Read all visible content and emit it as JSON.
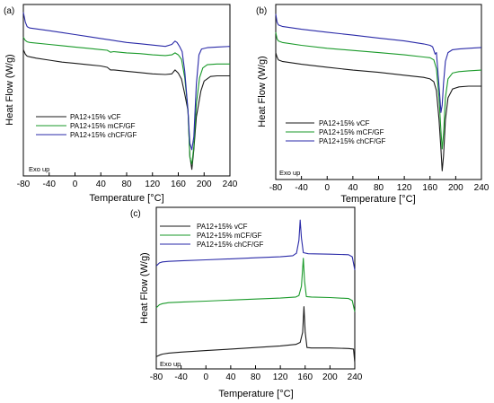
{
  "figure_labels": [
    "(a)",
    "(b)",
    "(c)"
  ],
  "colors": {
    "vCF": "#1a1a1a",
    "mCF_GF": "#1a9a2a",
    "chCF_GF": "#2a2aa8",
    "axis": "#000000"
  },
  "chart_data": [
    {
      "type": "line",
      "panel_label": "(a)",
      "xlabel": "Temperature [°C]",
      "ylabel": "Heat Flow (W/g)",
      "xlim": [
        -80,
        240
      ],
      "xticks": [
        "-80",
        "-40",
        "0",
        "40",
        "80",
        "120",
        "160",
        "200",
        "240"
      ],
      "yticks": false,
      "annotation": "Exo up",
      "legend_position": "left-middle",
      "series": [
        {
          "name": "PA12+15% vCF",
          "color": "#1a1a1a",
          "points": [
            [
              -80,
              0.93
            ],
            [
              -77,
              0.86
            ],
            [
              -74,
              0.83
            ],
            [
              -70,
              0.82
            ],
            [
              -60,
              0.8
            ],
            [
              -40,
              0.77
            ],
            [
              -20,
              0.74
            ],
            [
              0,
              0.72
            ],
            [
              20,
              0.7
            ],
            [
              40,
              0.68
            ],
            [
              50,
              0.66
            ],
            [
              55,
              0.62
            ],
            [
              60,
              0.62
            ],
            [
              80,
              0.6
            ],
            [
              100,
              0.58
            ],
            [
              120,
              0.56
            ],
            [
              140,
              0.55
            ],
            [
              150,
              0.56
            ],
            [
              155,
              0.62
            ],
            [
              160,
              0.57
            ],
            [
              165,
              0.48
            ],
            [
              170,
              0.25
            ],
            [
              175,
              0.0
            ],
            [
              178,
              -0.7
            ],
            [
              181,
              -0.9
            ],
            [
              184,
              -0.6
            ],
            [
              188,
              -0.1
            ],
            [
              195,
              0.3
            ],
            [
              200,
              0.45
            ],
            [
              210,
              0.52
            ],
            [
              220,
              0.53
            ],
            [
              240,
              0.53
            ]
          ]
        },
        {
          "name": "PA12+15% mCF/GF",
          "color": "#1a9a2a",
          "points": [
            [
              -80,
              1.12
            ],
            [
              -77,
              1.07
            ],
            [
              -74,
              1.05
            ],
            [
              -70,
              1.04
            ],
            [
              -40,
              1.01
            ],
            [
              -20,
              0.99
            ],
            [
              0,
              0.97
            ],
            [
              20,
              0.95
            ],
            [
              40,
              0.93
            ],
            [
              50,
              0.92
            ],
            [
              55,
              0.89
            ],
            [
              60,
              0.9
            ],
            [
              80,
              0.88
            ],
            [
              100,
              0.87
            ],
            [
              120,
              0.85
            ],
            [
              140,
              0.84
            ],
            [
              150,
              0.85
            ],
            [
              155,
              0.88
            ],
            [
              160,
              0.85
            ],
            [
              165,
              0.78
            ],
            [
              170,
              0.5
            ],
            [
              175,
              0.0
            ],
            [
              178,
              -0.72
            ],
            [
              181,
              -0.82
            ],
            [
              184,
              -0.55
            ],
            [
              188,
              0.1
            ],
            [
              193,
              0.5
            ],
            [
              198,
              0.65
            ],
            [
              205,
              0.7
            ],
            [
              220,
              0.71
            ],
            [
              240,
              0.71
            ]
          ]
        },
        {
          "name": "PA12+15% chCF/GF",
          "color": "#2a2aa8",
          "points": [
            [
              -80,
              1.5
            ],
            [
              -77,
              1.35
            ],
            [
              -74,
              1.28
            ],
            [
              -70,
              1.26
            ],
            [
              -40,
              1.22
            ],
            [
              -20,
              1.19
            ],
            [
              0,
              1.16
            ],
            [
              20,
              1.13
            ],
            [
              40,
              1.1
            ],
            [
              60,
              1.07
            ],
            [
              80,
              1.04
            ],
            [
              100,
              1.02
            ],
            [
              120,
              1.0
            ],
            [
              140,
              0.98
            ],
            [
              150,
              1.01
            ],
            [
              155,
              1.06
            ],
            [
              158,
              1.04
            ],
            [
              162,
              0.98
            ],
            [
              166,
              0.9
            ],
            [
              170,
              0.6
            ],
            [
              175,
              0.0
            ],
            [
              178,
              -0.5
            ],
            [
              181,
              -0.6
            ],
            [
              184,
              -0.4
            ],
            [
              188,
              0.4
            ],
            [
              192,
              0.85
            ],
            [
              196,
              0.94
            ],
            [
              205,
              0.96
            ],
            [
              220,
              0.97
            ],
            [
              240,
              0.98
            ]
          ]
        }
      ]
    },
    {
      "type": "line",
      "panel_label": "(b)",
      "xlabel": "Temperature [°C]",
      "ylabel": "Heat Flow (W/g)",
      "xlim": [
        -80,
        240
      ],
      "xticks": [
        "-80",
        "-40",
        "0",
        "40",
        "80",
        "120",
        "160",
        "200",
        "240"
      ],
      "yticks": false,
      "annotation": "Exo up",
      "legend_position": "left-lower",
      "series": [
        {
          "name": "PA12+15% vCF",
          "color": "#1a1a1a",
          "points": [
            [
              -80,
              1.02
            ],
            [
              -78,
              0.96
            ],
            [
              -76,
              0.92
            ],
            [
              -70,
              0.9
            ],
            [
              -40,
              0.86
            ],
            [
              0,
              0.82
            ],
            [
              40,
              0.78
            ],
            [
              80,
              0.75
            ],
            [
              120,
              0.71
            ],
            [
              150,
              0.68
            ],
            [
              160,
              0.66
            ],
            [
              166,
              0.62
            ],
            [
              170,
              0.5
            ],
            [
              174,
              0.1
            ],
            [
              177,
              -0.3
            ],
            [
              179,
              -0.6
            ],
            [
              181,
              -0.4
            ],
            [
              184,
              0.1
            ],
            [
              188,
              0.4
            ],
            [
              195,
              0.52
            ],
            [
              205,
              0.55
            ],
            [
              220,
              0.56
            ],
            [
              240,
              0.56
            ]
          ]
        },
        {
          "name": "PA12+15% mCF/GF",
          "color": "#1a9a2a",
          "points": [
            [
              -80,
              1.3
            ],
            [
              -78,
              1.21
            ],
            [
              -76,
              1.18
            ],
            [
              -70,
              1.16
            ],
            [
              -40,
              1.12
            ],
            [
              0,
              1.08
            ],
            [
              40,
              1.05
            ],
            [
              80,
              1.02
            ],
            [
              120,
              0.99
            ],
            [
              150,
              0.96
            ],
            [
              160,
              0.95
            ],
            [
              166,
              0.92
            ],
            [
              170,
              0.8
            ],
            [
              174,
              0.4
            ],
            [
              177,
              -0.05
            ],
            [
              179,
              -0.3
            ],
            [
              181,
              -0.1
            ],
            [
              184,
              0.4
            ],
            [
              188,
              0.66
            ],
            [
              195,
              0.74
            ],
            [
              205,
              0.76
            ],
            [
              220,
              0.77
            ],
            [
              240,
              0.78
            ]
          ]
        },
        {
          "name": "PA12+15% chCF/GF",
          "color": "#2a2aa8",
          "points": [
            [
              -80,
              1.55
            ],
            [
              -78,
              1.44
            ],
            [
              -76,
              1.4
            ],
            [
              -70,
              1.38
            ],
            [
              -40,
              1.34
            ],
            [
              0,
              1.3
            ],
            [
              40,
              1.26
            ],
            [
              80,
              1.22
            ],
            [
              120,
              1.18
            ],
            [
              150,
              1.14
            ],
            [
              160,
              1.12
            ],
            [
              164,
              1.1
            ],
            [
              168,
              1.0
            ],
            [
              170,
              1.02
            ],
            [
              172,
              0.8
            ],
            [
              175,
              0.45
            ],
            [
              177,
              0.2
            ],
            [
              179,
              0.3
            ],
            [
              181,
              0.6
            ],
            [
              184,
              0.9
            ],
            [
              188,
              1.02
            ],
            [
              195,
              1.06
            ],
            [
              205,
              1.07
            ],
            [
              220,
              1.08
            ],
            [
              240,
              1.09
            ]
          ]
        }
      ]
    },
    {
      "type": "line",
      "panel_label": "(c)",
      "xlabel": "Temperature [°C]",
      "ylabel": "Heat Flow (W/g)",
      "xlim": [
        -80,
        240
      ],
      "xticks": [
        "-80",
        "-40",
        "0",
        "40",
        "80",
        "120",
        "160",
        "200",
        "240"
      ],
      "yticks": false,
      "annotation": "Exo up",
      "legend_position": "top-center",
      "series": [
        {
          "name": "PA12+15% vCF",
          "color": "#1a1a1a",
          "points": [
            [
              -80,
              0.02
            ],
            [
              -75,
              0.05
            ],
            [
              -70,
              0.07
            ],
            [
              -60,
              0.09
            ],
            [
              -40,
              0.11
            ],
            [
              0,
              0.14
            ],
            [
              40,
              0.17
            ],
            [
              80,
              0.2
            ],
            [
              120,
              0.23
            ],
            [
              145,
              0.26
            ],
            [
              152,
              0.3
            ],
            [
              156,
              0.5
            ],
            [
              158,
              1.0
            ],
            [
              160,
              0.5
            ],
            [
              163,
              0.2
            ],
            [
              170,
              0.19
            ],
            [
              200,
              0.19
            ],
            [
              230,
              0.18
            ],
            [
              238,
              0.17
            ],
            [
              240,
              -0.1
            ]
          ]
        },
        {
          "name": "PA12+15% mCF/GF",
          "color": "#1a9a2a",
          "points": [
            [
              -80,
              0.98
            ],
            [
              -75,
              1.04
            ],
            [
              -70,
              1.06
            ],
            [
              -60,
              1.08
            ],
            [
              -40,
              1.09
            ],
            [
              0,
              1.11
            ],
            [
              40,
              1.13
            ],
            [
              80,
              1.15
            ],
            [
              120,
              1.17
            ],
            [
              145,
              1.19
            ],
            [
              150,
              1.22
            ],
            [
              154,
              1.4
            ],
            [
              157,
              1.95
            ],
            [
              159,
              1.5
            ],
            [
              162,
              1.2
            ],
            [
              170,
              1.19
            ],
            [
              200,
              1.18
            ],
            [
              230,
              1.16
            ],
            [
              236,
              1.12
            ],
            [
              240,
              0.9
            ]
          ]
        },
        {
          "name": "PA12+15% chCF/GF",
          "color": "#2a2aa8",
          "points": [
            [
              -80,
              1.8
            ],
            [
              -75,
              1.86
            ],
            [
              -70,
              1.88
            ],
            [
              -60,
              1.89
            ],
            [
              -40,
              1.9
            ],
            [
              0,
              1.92
            ],
            [
              40,
              1.94
            ],
            [
              80,
              1.96
            ],
            [
              120,
              1.98
            ],
            [
              140,
              2.0
            ],
            [
              146,
              2.05
            ],
            [
              150,
              2.3
            ],
            [
              152,
              2.7
            ],
            [
              154,
              2.35
            ],
            [
              157,
              2.06
            ],
            [
              165,
              2.04
            ],
            [
              200,
              2.03
            ],
            [
              230,
              2.02
            ],
            [
              236,
              1.98
            ],
            [
              240,
              1.72
            ]
          ]
        }
      ]
    }
  ]
}
